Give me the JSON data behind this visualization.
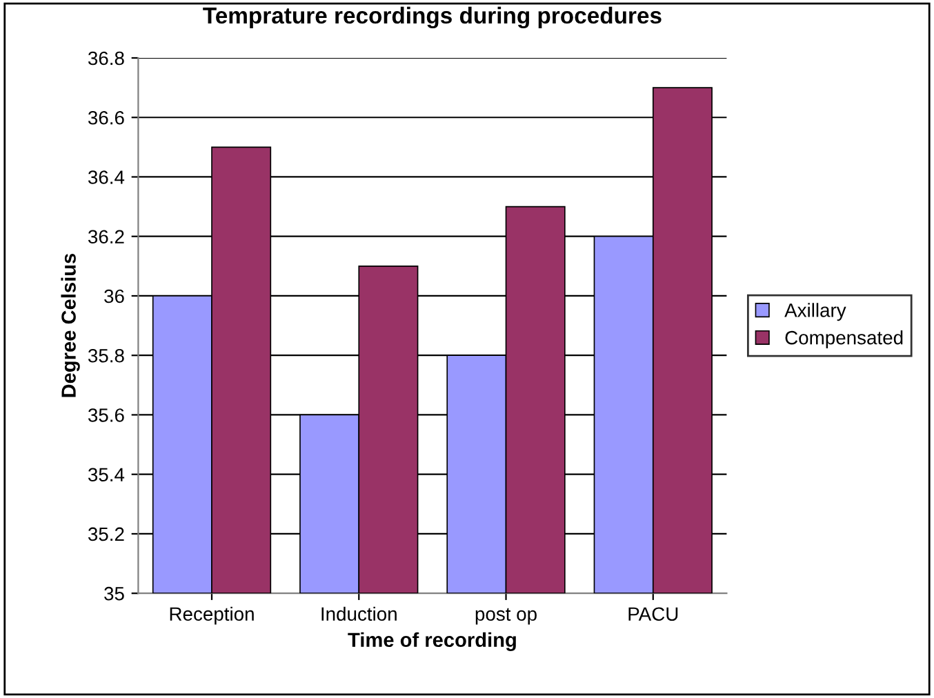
{
  "chart_data": {
    "type": "bar",
    "title": "Temprature recordings during procedures",
    "xlabel": "Time of recording",
    "ylabel": "Degree Celsius",
    "categories": [
      "Reception",
      "Induction",
      "post op",
      "PACU"
    ],
    "series": [
      {
        "name": "Axillary",
        "color": "#9999ff",
        "values": [
          36,
          35.6,
          35.8,
          36.2
        ]
      },
      {
        "name": "Compensated",
        "color": "#993366",
        "values": [
          36.5,
          36.1,
          36.3,
          36.7
        ]
      }
    ],
    "ylim": [
      35,
      36.8
    ],
    "yticks": [
      35,
      35.2,
      35.4,
      35.6,
      35.8,
      36,
      36.2,
      36.4,
      36.6,
      36.8
    ],
    "grid": "y",
    "legend": "right"
  }
}
